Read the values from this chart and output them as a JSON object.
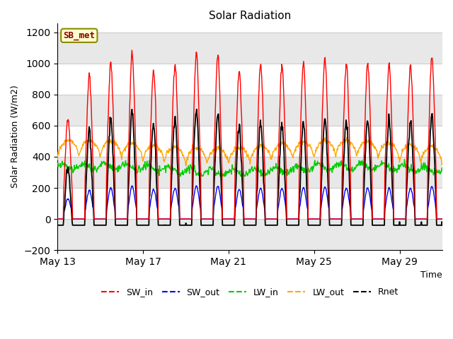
{
  "title": "Solar Radiation",
  "xlabel": "Time",
  "ylabel": "Solar Radiation (W/m2)",
  "ylim": [
    -200,
    1260
  ],
  "yticks": [
    -200,
    0,
    200,
    400,
    600,
    800,
    1000,
    1200
  ],
  "xtick_labels": [
    "May 13",
    "May 17",
    "May 21",
    "May 25",
    "May 29"
  ],
  "xtick_days": [
    0,
    4,
    8,
    12,
    16
  ],
  "station_label": "SB_met",
  "colors": {
    "SW_in": "#ff0000",
    "SW_out": "#0000ff",
    "LW_in": "#00cc00",
    "LW_out": "#ffa500",
    "Rnet": "#000000"
  },
  "background_color": "#ffffff",
  "plot_bg_color": "#ffffff",
  "grid_color": "#d0d0d0",
  "lw": 1.0,
  "n_days": 18,
  "hours_per_day": 48,
  "sw_in_peaks": [
    650,
    920,
    1000,
    1060,
    950,
    1000,
    1060,
    1050,
    950,
    1000,
    990,
    1000,
    1030,
    1000,
    1000,
    1000,
    990,
    1040
  ]
}
